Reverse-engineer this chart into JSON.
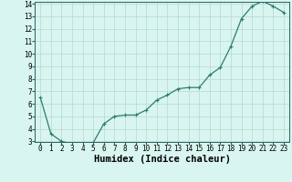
{
  "x": [
    0,
    1,
    2,
    3,
    4,
    5,
    6,
    7,
    8,
    9,
    10,
    11,
    12,
    13,
    14,
    15,
    16,
    17,
    18,
    19,
    20,
    21,
    22,
    23
  ],
  "y": [
    6.5,
    3.6,
    3.0,
    2.8,
    2.8,
    2.9,
    4.4,
    5.0,
    5.1,
    5.1,
    5.5,
    6.3,
    6.7,
    7.2,
    7.3,
    7.3,
    8.3,
    8.9,
    10.6,
    12.8,
    13.8,
    14.2,
    13.8,
    13.3
  ],
  "line_color": "#2d7d6e",
  "marker": "+",
  "marker_color": "#2d7d6e",
  "bg_color": "#d8f5f0",
  "grid_color": "#b8d8d0",
  "xlabel": "Humidex (Indice chaleur)",
  "xlabel_fontsize": 7.5,
  "ylim": [
    3,
    14
  ],
  "xlim": [
    -0.5,
    23.5
  ],
  "yticks": [
    3,
    4,
    5,
    6,
    7,
    8,
    9,
    10,
    11,
    12,
    13,
    14
  ],
  "xticks": [
    0,
    1,
    2,
    3,
    4,
    5,
    6,
    7,
    8,
    9,
    10,
    11,
    12,
    13,
    14,
    15,
    16,
    17,
    18,
    19,
    20,
    21,
    22,
    23
  ],
  "tick_fontsize": 5.5,
  "axis_color": "#2d6060",
  "linewidth": 0.9,
  "markersize": 3.5
}
